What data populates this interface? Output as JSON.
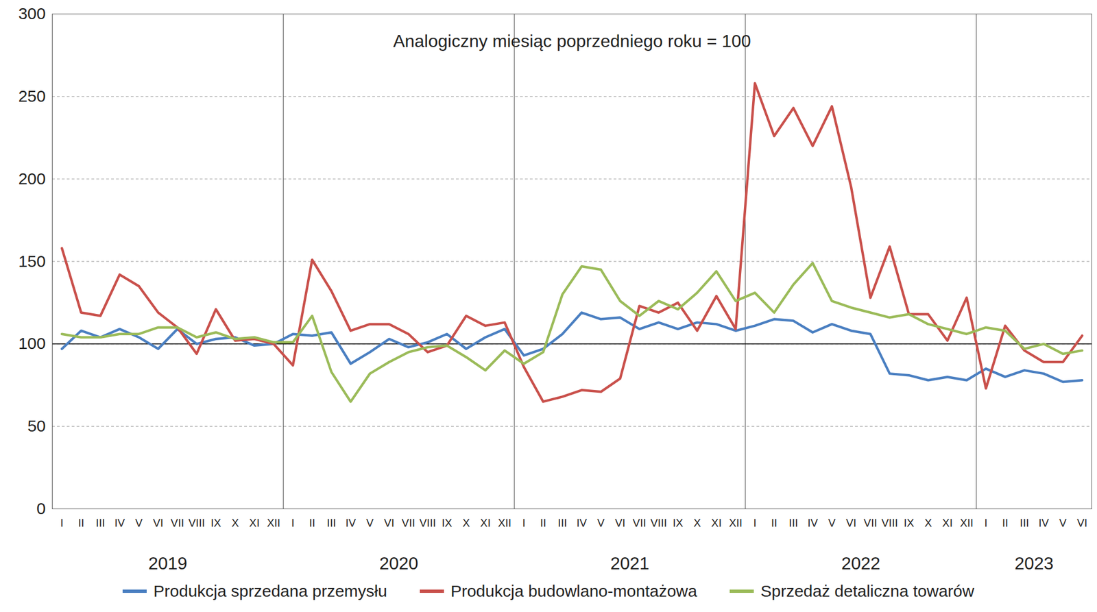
{
  "chart_data": {
    "type": "line",
    "title": "Analogiczny miesiąc poprzedniego roku = 100",
    "categories": [
      "I",
      "II",
      "III",
      "IV",
      "V",
      "VI",
      "VII",
      "VIII",
      "IX",
      "X",
      "XI",
      "XII",
      "I",
      "II",
      "III",
      "IV",
      "V",
      "VI",
      "VII",
      "VIII",
      "IX",
      "X",
      "XI",
      "XII",
      "I",
      "II",
      "III",
      "IV",
      "V",
      "VI",
      "VII",
      "VIII",
      "IX",
      "X",
      "XI",
      "XII",
      "I",
      "II",
      "III",
      "IV",
      "V",
      "VI",
      "VII",
      "VIII",
      "IX",
      "X",
      "XI",
      "XII",
      "I",
      "II",
      "III",
      "IV",
      "V",
      "VI"
    ],
    "category_groups": [
      {
        "label": "2019",
        "count": 12
      },
      {
        "label": "2020",
        "count": 12
      },
      {
        "label": "2021",
        "count": 12
      },
      {
        "label": "2022",
        "count": 12
      },
      {
        "label": "2023",
        "count": 6
      }
    ],
    "series": [
      {
        "name": "Produkcja sprzedana przemysłu",
        "color": "#4a7fc1",
        "values": [
          97,
          108,
          104,
          109,
          104,
          97,
          109,
          100,
          103,
          104,
          99,
          100,
          106,
          105,
          107,
          88,
          95,
          103,
          98,
          101,
          106,
          97,
          104,
          109,
          93,
          97,
          106,
          119,
          115,
          116,
          109,
          113,
          109,
          113,
          112,
          108,
          111,
          115,
          114,
          107,
          112,
          108,
          106,
          82,
          81,
          78,
          80,
          78,
          85,
          80,
          84,
          82,
          77,
          78
        ]
      },
      {
        "name": "Produkcja budowlano-montażowa",
        "color": "#c9504b",
        "values": [
          158,
          119,
          117,
          142,
          135,
          119,
          110,
          94,
          121,
          102,
          103,
          100,
          87,
          151,
          132,
          108,
          112,
          112,
          106,
          95,
          99,
          117,
          111,
          113,
          86,
          65,
          68,
          72,
          71,
          79,
          123,
          119,
          125,
          108,
          129,
          109,
          258,
          226,
          243,
          220,
          244,
          195,
          128,
          159,
          118,
          118,
          102,
          128,
          73,
          111,
          96,
          89,
          89,
          105
        ]
      },
      {
        "name": "Sprzedaż detaliczna towarów",
        "color": "#9bbb59",
        "values": [
          106,
          104,
          104,
          106,
          106,
          110,
          110,
          104,
          107,
          103,
          104,
          101,
          101,
          117,
          83,
          65,
          82,
          89,
          95,
          98,
          99,
          92,
          84,
          96,
          88,
          95,
          130,
          147,
          145,
          126,
          117,
          126,
          121,
          131,
          144,
          126,
          131,
          119,
          136,
          149,
          126,
          122,
          119,
          116,
          118,
          112,
          109,
          106,
          110,
          108,
          97,
          100,
          94,
          96
        ]
      }
    ],
    "baseline": 100,
    "ylim": [
      0,
      300
    ],
    "yticks": [
      0,
      50,
      100,
      150,
      200,
      250,
      300
    ],
    "grid": true,
    "legend": "bottom"
  }
}
